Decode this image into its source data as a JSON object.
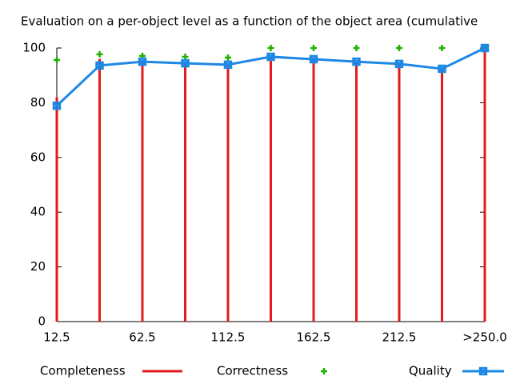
{
  "chart_data": {
    "type": "line",
    "title": "Evaluation on a per-object level as a function of the object area (cumulative",
    "categories": [
      "12.5",
      null,
      "62.5",
      null,
      "112.5",
      null,
      "162.5",
      null,
      "212.5",
      null,
      ">250.0"
    ],
    "ylim": [
      0,
      100
    ],
    "yticks": [
      0,
      20,
      40,
      60,
      80,
      100
    ],
    "grid": false,
    "legend": "bottom",
    "series": [
      {
        "name": "Completeness",
        "color": "#e41a1c",
        "style": "impulses",
        "values": [
          82,
          96,
          95,
          95,
          94,
          97,
          96,
          95,
          94,
          93,
          100
        ]
      },
      {
        "name": "Correctness",
        "color": "#1fb000",
        "style": "points",
        "values": [
          95.6,
          97.7,
          97.1,
          96.8,
          96.5,
          100,
          100,
          100,
          100,
          100,
          100
        ]
      },
      {
        "name": "Quality",
        "color": "#1e88e5",
        "style": "linespoints",
        "values": [
          78.9,
          93.6,
          95.0,
          94.4,
          93.9,
          96.8,
          95.9,
          95.0,
          94.2,
          92.4,
          100
        ]
      }
    ]
  }
}
